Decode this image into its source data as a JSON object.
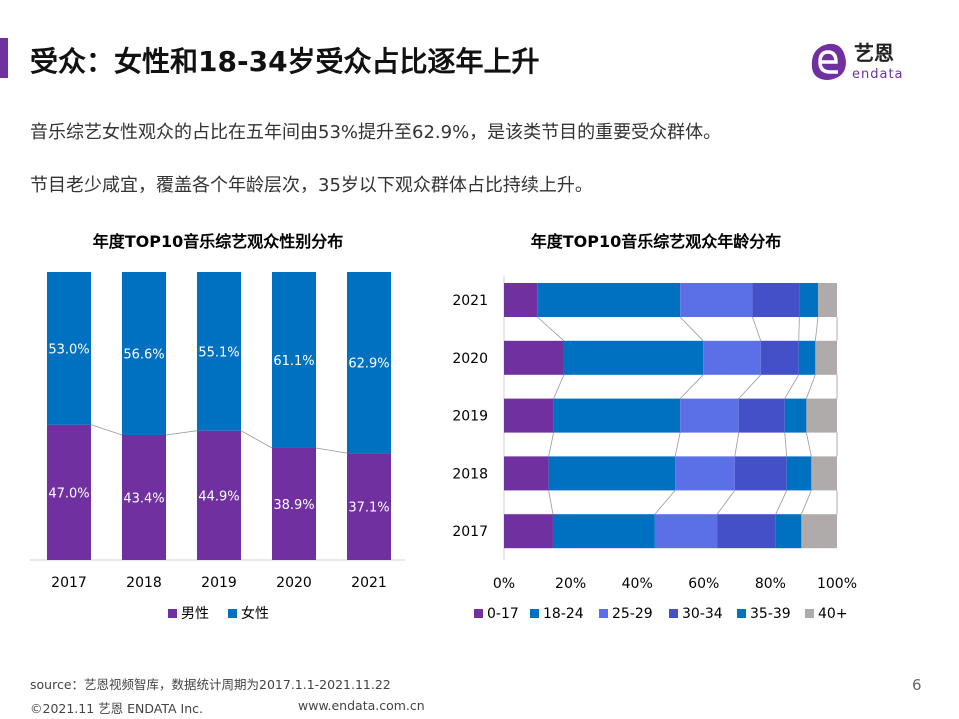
{
  "header": {
    "title": "受众：女性和18-34岁受众占比逐年上升",
    "logo_text": "艺恩 endata",
    "brand_color": "#7030a0"
  },
  "body": {
    "line1": "音乐综艺女性观众的占比在五年间由53%提升至62.9%，是该类节目的重要受众群体。",
    "line2": "节目老少咸宜，覆盖各个年龄层次，35岁以下观众群体占比持续上升。"
  },
  "chart_data": [
    {
      "type": "bar",
      "stacked": true,
      "orientation": "vertical",
      "title": "年度TOP10音乐综艺观众性别分布",
      "categories": [
        "2017",
        "2018",
        "2019",
        "2020",
        "2021"
      ],
      "ylim": [
        0,
        100
      ],
      "legend": "bottom",
      "series": [
        {
          "name": "男性",
          "color": "#7030a0",
          "values": [
            47.0,
            43.4,
            44.9,
            38.9,
            37.1
          ],
          "labels": [
            "47.0%",
            "43.4%",
            "44.9%",
            "38.9%",
            "37.1%"
          ]
        },
        {
          "name": "女性",
          "color": "#0070c0",
          "values": [
            53.0,
            56.6,
            55.1,
            61.1,
            62.9
          ],
          "labels": [
            "53.0%",
            "56.6%",
            "55.1%",
            "61.1%",
            "62.9%"
          ]
        }
      ]
    },
    {
      "type": "bar",
      "stacked": true,
      "orientation": "horizontal",
      "title": "年度TOP10音乐综艺观众年龄分布",
      "categories": [
        "2021",
        "2020",
        "2019",
        "2018",
        "2017"
      ],
      "xlim": [
        0,
        100
      ],
      "legend": "bottom",
      "xticks": [
        "0%",
        "20%",
        "40%",
        "60%",
        "80%",
        "100%"
      ],
      "series": [
        {
          "name": "0-17",
          "color": "#7030a0",
          "values": [
            10.0,
            18.0,
            14.9,
            13.4,
            14.7
          ]
        },
        {
          "name": "18-24",
          "color": "#0070c0",
          "values": [
            42.9,
            41.8,
            38.0,
            38.0,
            30.6
          ]
        },
        {
          "name": "25-29",
          "color": "#5b6fe6",
          "values": [
            21.7,
            17.3,
            17.6,
            17.9,
            18.7
          ]
        },
        {
          "name": "30-34",
          "color": "#4450c8",
          "values": [
            14.1,
            11.4,
            13.8,
            15.6,
            17.6
          ]
        },
        {
          "name": "35-39",
          "color": "#0070c0",
          "values": [
            5.6,
            5.0,
            6.5,
            7.4,
            7.7
          ]
        },
        {
          "name": "40+",
          "color": "#afabab",
          "values": [
            5.7,
            6.5,
            9.2,
            7.7,
            10.7
          ]
        }
      ]
    }
  ],
  "footer": {
    "source": "source：艺恩视频智库，数据统计周期为2017.1.1-2021.11.22",
    "copyright": "©2021.11 艺恩 ENDATA Inc.",
    "website": "www.endata.com.cn",
    "page": "6"
  }
}
